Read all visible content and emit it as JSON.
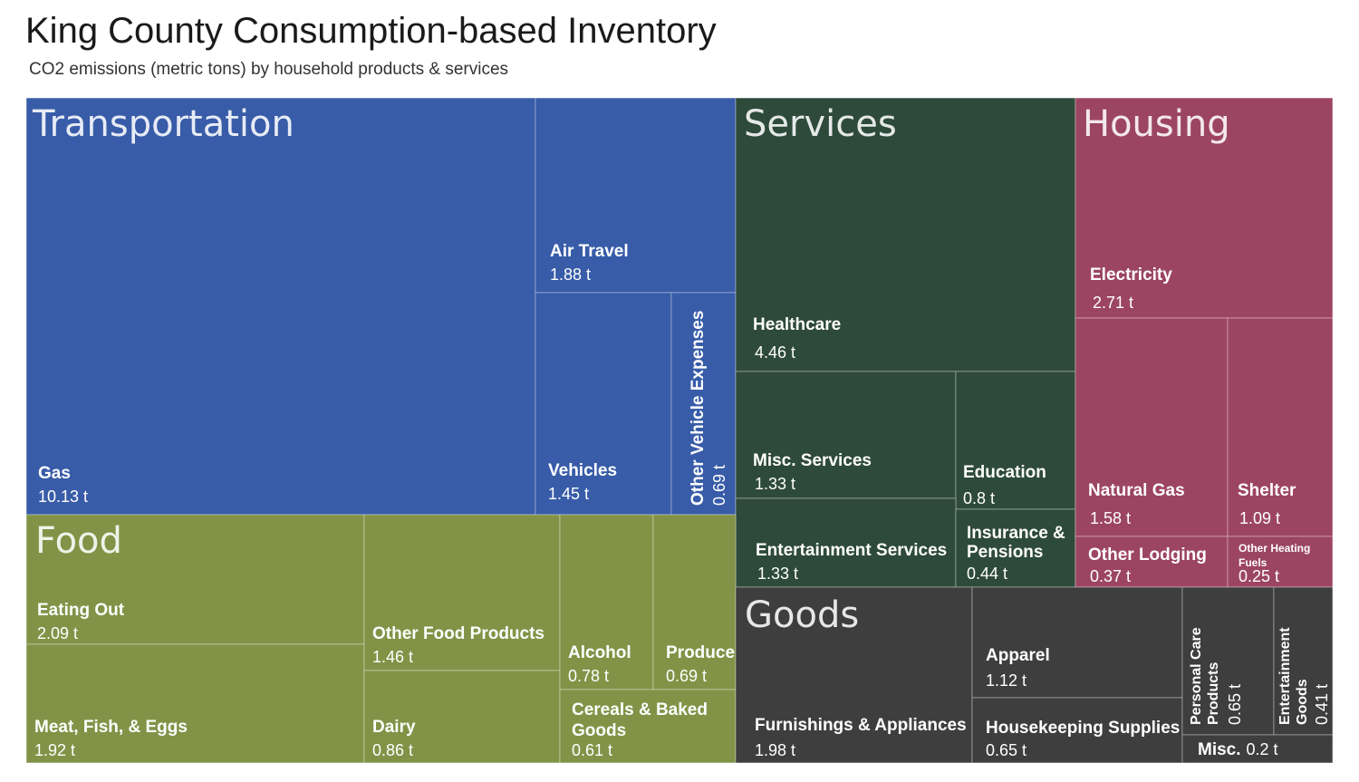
{
  "header": {
    "title": "King County Consumption-based Inventory",
    "subtitle": "CO2 emissions (metric tons) by household products & services"
  },
  "chart_data": {
    "type": "treemap",
    "title": "King County Consumption-based Inventory",
    "subtitle": "CO2 emissions (metric tons) by household products & services",
    "unit": "t",
    "groups": [
      {
        "name": "Transportation",
        "color": "#385ca8",
        "items": [
          {
            "name": "Gas",
            "value": 10.13,
            "label": "10.13 t"
          },
          {
            "name": "Air Travel",
            "value": 1.88,
            "label": "1.88 t"
          },
          {
            "name": "Vehicles",
            "value": 1.45,
            "label": "1.45 t"
          },
          {
            "name": "Other Vehicle Expenses",
            "value": 0.69,
            "label": "0.69 t"
          }
        ]
      },
      {
        "name": "Services",
        "color": "#2e4a3a",
        "items": [
          {
            "name": "Healthcare",
            "value": 4.46,
            "label": "4.46 t"
          },
          {
            "name": "Misc. Services",
            "value": 1.33,
            "label": "1.33 t"
          },
          {
            "name": "Education",
            "value": 0.8,
            "label": "0.8 t"
          },
          {
            "name": "Entertainment Services",
            "value": 1.33,
            "label": "1.33 t"
          },
          {
            "name": "Insurance & Pensions",
            "value": 0.44,
            "label": "0.44 t"
          }
        ]
      },
      {
        "name": "Housing",
        "color": "#9c4562",
        "items": [
          {
            "name": "Electricity",
            "value": 2.71,
            "label": "2.71 t"
          },
          {
            "name": "Natural Gas",
            "value": 1.58,
            "label": "1.58 t"
          },
          {
            "name": "Shelter",
            "value": 1.09,
            "label": "1.09 t"
          },
          {
            "name": "Other Lodging",
            "value": 0.37,
            "label": "0.37 t"
          },
          {
            "name": "Other Heating Fuels",
            "value": 0.25,
            "label": "0.25 t"
          }
        ]
      },
      {
        "name": "Food",
        "color": "#829347",
        "items": [
          {
            "name": "Eating Out",
            "value": 2.09,
            "label": "2.09 t"
          },
          {
            "name": "Meat, Fish, & Eggs",
            "value": 1.92,
            "label": "1.92 t"
          },
          {
            "name": "Other Food Products",
            "value": 1.46,
            "label": "1.46 t"
          },
          {
            "name": "Dairy",
            "value": 0.86,
            "label": "0.86 t"
          },
          {
            "name": "Alcohol",
            "value": 0.78,
            "label": "0.78 t"
          },
          {
            "name": "Produce",
            "value": 0.69,
            "label": "0.69 t"
          },
          {
            "name": "Cereals & Baked Goods",
            "value": 0.61,
            "label": "0.61 t"
          }
        ]
      },
      {
        "name": "Goods",
        "color": "#3e3e3e",
        "items": [
          {
            "name": "Furnishings & Appliances",
            "value": 1.98,
            "label": "1.98 t"
          },
          {
            "name": "Apparel",
            "value": 1.12,
            "label": "1.12 t"
          },
          {
            "name": "Housekeeping Supplies",
            "value": 0.65,
            "label": "0.65 t"
          },
          {
            "name": "Personal Care Products",
            "value": 0.65,
            "label": "0.65 t"
          },
          {
            "name": "Entertainment Goods",
            "value": 0.41,
            "label": "0.41 t"
          },
          {
            "name": "Misc.",
            "value": 0.2,
            "label": "0.2 t"
          }
        ]
      }
    ]
  }
}
